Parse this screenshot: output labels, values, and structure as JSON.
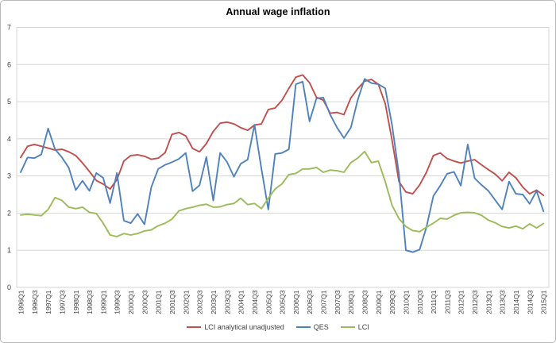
{
  "chart_data": {
    "type": "line",
    "title": "Annual wage inflation",
    "xlabel": "",
    "ylabel": "",
    "ylim": [
      0,
      7
    ],
    "y_ticks": [
      "0",
      "1",
      "2",
      "3",
      "4",
      "5",
      "6",
      "7"
    ],
    "grid": true,
    "legend_position": "bottom",
    "x_tick_labels": [
      "1996Q1",
      "1996Q3",
      "1997Q1",
      "1997Q3",
      "1998Q1",
      "1998Q3",
      "1999Q1",
      "1999Q3",
      "2000Q1",
      "2000Q3",
      "2001Q1",
      "2001Q3",
      "2002Q1",
      "2002Q3",
      "2003Q1",
      "2003Q3",
      "2004Q1",
      "2004Q3",
      "2005Q1",
      "2005Q3",
      "2006Q1",
      "2006Q3",
      "2007Q1",
      "2007Q3",
      "2008Q1",
      "2008Q3",
      "2009Q1",
      "2009Q3",
      "2010Q1",
      "2010Q3",
      "2011Q1",
      "2011Q3",
      "2012Q1",
      "2012Q3",
      "2013Q1",
      "2013Q3",
      "2014Q1",
      "2014Q3",
      "2015Q1"
    ],
    "categories": [
      "1996Q1",
      "1996Q2",
      "1996Q3",
      "1996Q4",
      "1997Q1",
      "1997Q2",
      "1997Q3",
      "1997Q4",
      "1998Q1",
      "1998Q2",
      "1998Q3",
      "1998Q4",
      "1999Q1",
      "1999Q2",
      "1999Q3",
      "1999Q4",
      "2000Q1",
      "2000Q2",
      "2000Q3",
      "2000Q4",
      "2001Q1",
      "2001Q2",
      "2001Q3",
      "2001Q4",
      "2002Q1",
      "2002Q2",
      "2002Q3",
      "2002Q4",
      "2003Q1",
      "2003Q2",
      "2003Q3",
      "2003Q4",
      "2004Q1",
      "2004Q2",
      "2004Q3",
      "2004Q4",
      "2005Q1",
      "2005Q2",
      "2005Q3",
      "2005Q4",
      "2006Q1",
      "2006Q2",
      "2006Q3",
      "2006Q4",
      "2007Q1",
      "2007Q2",
      "2007Q3",
      "2007Q4",
      "2008Q1",
      "2008Q2",
      "2008Q3",
      "2008Q4",
      "2009Q1",
      "2009Q2",
      "2009Q3",
      "2009Q4",
      "2010Q1",
      "2010Q2",
      "2010Q3",
      "2010Q4",
      "2011Q1",
      "2011Q2",
      "2011Q3",
      "2011Q4",
      "2012Q1",
      "2012Q2",
      "2012Q3",
      "2012Q4",
      "2013Q1",
      "2013Q2",
      "2013Q3",
      "2013Q4",
      "2014Q1",
      "2014Q2",
      "2014Q3",
      "2014Q4",
      "2015Q1"
    ],
    "series": [
      {
        "name": "LCI analytical unadjusted",
        "color": "#C0504D",
        "values": [
          3.5,
          3.8,
          3.85,
          3.8,
          3.75,
          3.7,
          3.72,
          3.65,
          3.55,
          3.35,
          3.12,
          2.88,
          2.78,
          2.65,
          2.9,
          3.4,
          3.55,
          3.57,
          3.53,
          3.45,
          3.48,
          3.63,
          4.12,
          4.17,
          4.08,
          3.74,
          3.65,
          3.87,
          4.2,
          4.42,
          4.45,
          4.4,
          4.3,
          4.23,
          4.37,
          4.4,
          4.79,
          4.83,
          5.04,
          5.36,
          5.66,
          5.72,
          5.51,
          5.12,
          5.04,
          4.69,
          4.71,
          4.65,
          5.1,
          5.35,
          5.55,
          5.6,
          5.47,
          4.95,
          3.96,
          2.85,
          2.57,
          2.52,
          2.76,
          3.1,
          3.55,
          3.62,
          3.47,
          3.4,
          3.35,
          3.4,
          3.44,
          3.3,
          3.17,
          3.05,
          2.87,
          3.1,
          2.95,
          2.7,
          2.52,
          2.62,
          2.48
        ]
      },
      {
        "name": "QES",
        "color": "#4F81BD",
        "values": [
          3.1,
          3.5,
          3.48,
          3.58,
          4.28,
          3.72,
          3.5,
          3.22,
          2.62,
          2.87,
          2.6,
          3.08,
          2.95,
          2.27,
          3.08,
          1.8,
          1.73,
          1.98,
          1.7,
          2.7,
          3.19,
          3.3,
          3.37,
          3.46,
          3.62,
          2.59,
          2.75,
          3.51,
          2.34,
          3.62,
          3.38,
          2.98,
          3.33,
          3.44,
          4.38,
          3.2,
          2.1,
          3.59,
          3.62,
          3.72,
          5.47,
          5.54,
          4.47,
          5.09,
          5.11,
          4.65,
          4.3,
          4.02,
          4.3,
          5.04,
          5.61,
          5.5,
          5.47,
          5.36,
          4.37,
          3.05,
          1.0,
          0.95,
          1.02,
          1.62,
          2.46,
          2.74,
          3.06,
          3.11,
          2.74,
          3.85,
          2.94,
          2.76,
          2.6,
          2.35,
          2.1,
          2.85,
          2.52,
          2.5,
          2.25,
          2.6,
          2.05
        ]
      },
      {
        "name": "LCI",
        "color": "#9BBB59",
        "values": [
          1.95,
          1.97,
          1.95,
          1.93,
          2.1,
          2.42,
          2.34,
          2.16,
          2.12,
          2.16,
          2.02,
          1.99,
          1.73,
          1.41,
          1.37,
          1.45,
          1.41,
          1.45,
          1.52,
          1.55,
          1.66,
          1.73,
          1.84,
          2.06,
          2.12,
          2.16,
          2.21,
          2.24,
          2.16,
          2.17,
          2.23,
          2.26,
          2.4,
          2.23,
          2.26,
          2.12,
          2.4,
          2.65,
          2.79,
          3.04,
          3.07,
          3.19,
          3.19,
          3.23,
          3.1,
          3.16,
          3.14,
          3.1,
          3.36,
          3.48,
          3.66,
          3.36,
          3.4,
          2.85,
          2.21,
          1.85,
          1.64,
          1.53,
          1.5,
          1.62,
          1.73,
          1.86,
          1.84,
          1.94,
          2.01,
          2.02,
          2.01,
          1.94,
          1.81,
          1.74,
          1.64,
          1.6,
          1.65,
          1.58,
          1.71,
          1.6,
          1.72
        ]
      }
    ]
  },
  "colors": {
    "background": "#FFFFFF",
    "border": "#B9B9B9",
    "gridline": "#D6D6D6",
    "axis_text": "#3F3F3F"
  }
}
